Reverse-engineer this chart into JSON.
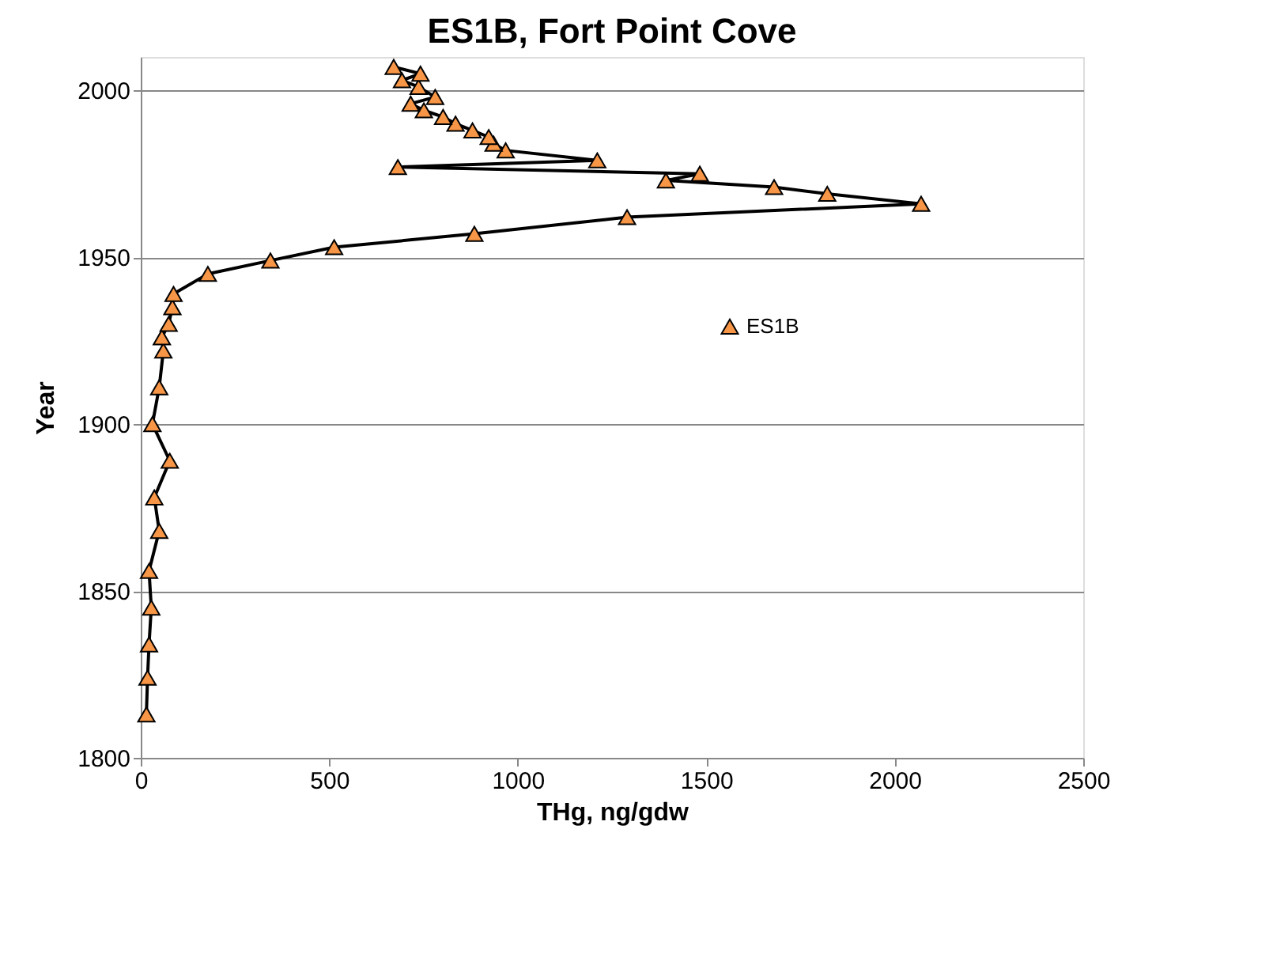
{
  "chart_data": {
    "type": "line",
    "title": "ES1B, Fort Point Cove",
    "xlabel": "THg, ng/gdw",
    "ylabel": "Year",
    "xlim": [
      0,
      2500
    ],
    "xticks": [
      0,
      500,
      1000,
      1500,
      2000,
      2500
    ],
    "ylim": [
      1800,
      2010
    ],
    "yticks": [
      1800,
      1850,
      1900,
      1950,
      2000
    ],
    "grid": "y",
    "legend": "right",
    "marker": "triangle",
    "line_style": "solid",
    "series": [
      {
        "name": "ES1B",
        "color": "#f79646",
        "x": [
          15,
          18,
          22,
          28,
          22,
          49,
          36,
          77,
          31,
          49,
          60,
          56,
          74,
          84,
          87,
          178,
          344,
          513,
          885,
          1290,
          2070,
          1821,
          1680,
          1393,
          1483,
          682,
          1211,
          968,
          936,
          923,
          880,
          835,
          802,
          751,
          716,
          781,
          737,
          693,
          742,
          671
        ],
        "values": [
          1813,
          1824,
          1834,
          1845,
          1856,
          1868,
          1878,
          1889,
          1900,
          1911,
          1922,
          1926,
          1930,
          1935,
          1939,
          1945,
          1949,
          1953,
          1957,
          1962,
          1966,
          1969,
          1971,
          1973,
          1975,
          1977,
          1979,
          1982,
          1984,
          1986,
          1988,
          1990,
          1992,
          1994,
          1996,
          1998,
          2001,
          2003,
          2005,
          2007
        ]
      }
    ]
  }
}
